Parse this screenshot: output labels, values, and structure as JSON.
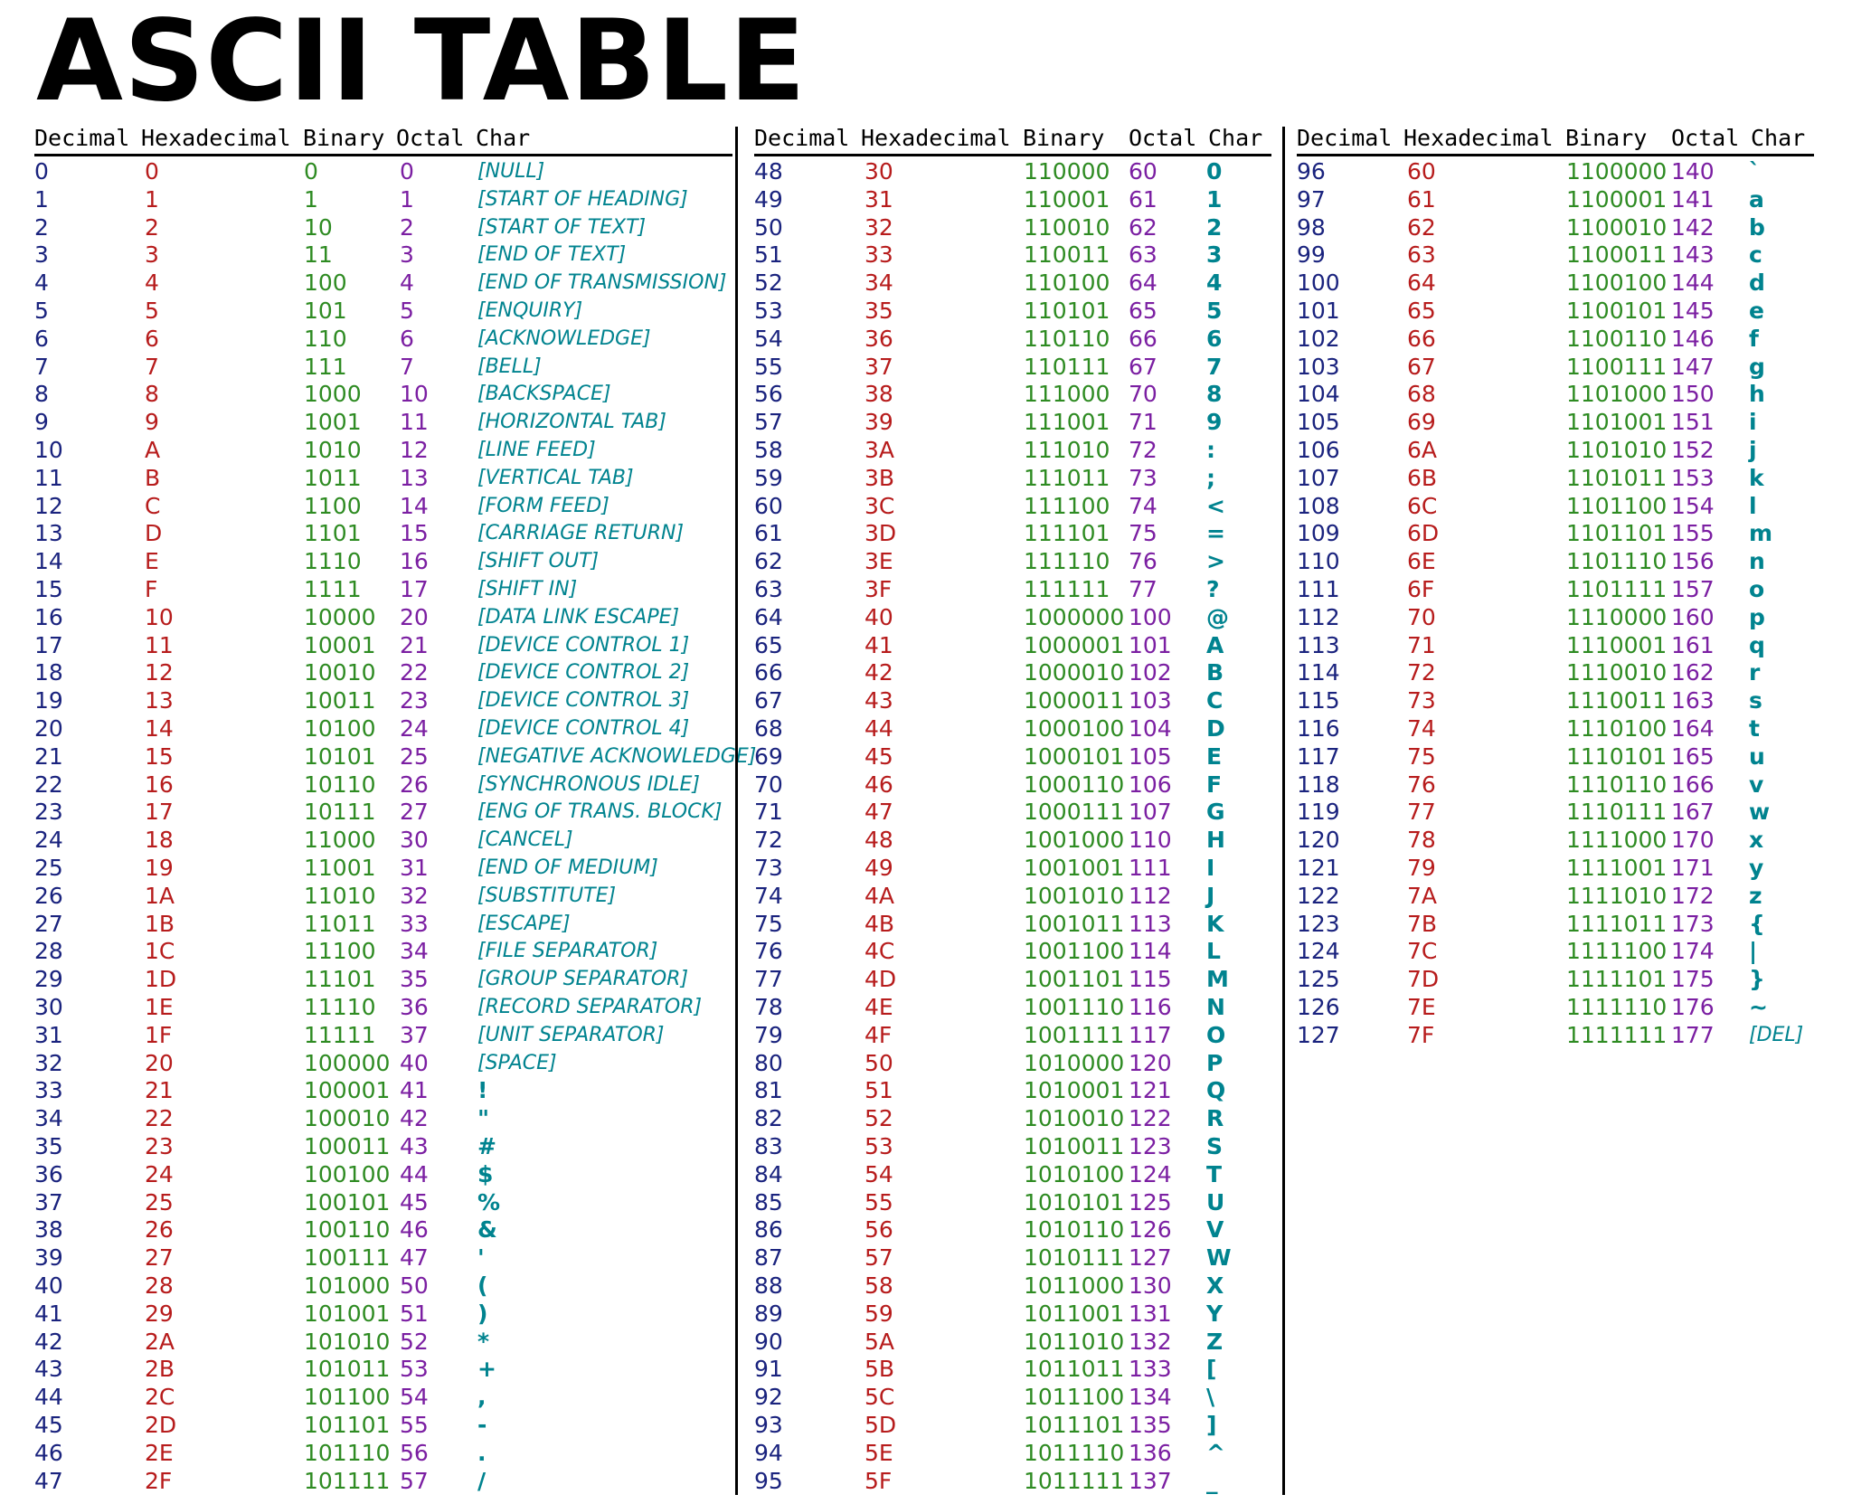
{
  "title": "ASCII TABLE",
  "headers": [
    "Decimal",
    "Hexadecimal",
    "Binary",
    "Octal",
    "Char"
  ],
  "colors": {
    "decimal": "#1a237e",
    "hex": "#b71c1c",
    "binary": "#2e8b22",
    "octal": "#7b1fa2",
    "char": "#00838f"
  },
  "sections": [
    {
      "rows": [
        [
          "0",
          "0",
          "0",
          "0",
          "[NULL]"
        ],
        [
          "1",
          "1",
          "1",
          "1",
          "[START OF HEADING]"
        ],
        [
          "2",
          "2",
          "10",
          "2",
          "[START OF TEXT]"
        ],
        [
          "3",
          "3",
          "11",
          "3",
          "[END OF TEXT]"
        ],
        [
          "4",
          "4",
          "100",
          "4",
          "[END OF TRANSMISSION]"
        ],
        [
          "5",
          "5",
          "101",
          "5",
          "[ENQUIRY]"
        ],
        [
          "6",
          "6",
          "110",
          "6",
          "[ACKNOWLEDGE]"
        ],
        [
          "7",
          "7",
          "111",
          "7",
          "[BELL]"
        ],
        [
          "8",
          "8",
          "1000",
          "10",
          "[BACKSPACE]"
        ],
        [
          "9",
          "9",
          "1001",
          "11",
          "[HORIZONTAL TAB]"
        ],
        [
          "10",
          "A",
          "1010",
          "12",
          "[LINE FEED]"
        ],
        [
          "11",
          "B",
          "1011",
          "13",
          "[VERTICAL TAB]"
        ],
        [
          "12",
          "C",
          "1100",
          "14",
          "[FORM FEED]"
        ],
        [
          "13",
          "D",
          "1101",
          "15",
          "[CARRIAGE RETURN]"
        ],
        [
          "14",
          "E",
          "1110",
          "16",
          "[SHIFT OUT]"
        ],
        [
          "15",
          "F",
          "1111",
          "17",
          "[SHIFT IN]"
        ],
        [
          "16",
          "10",
          "10000",
          "20",
          "[DATA LINK ESCAPE]"
        ],
        [
          "17",
          "11",
          "10001",
          "21",
          "[DEVICE CONTROL 1]"
        ],
        [
          "18",
          "12",
          "10010",
          "22",
          "[DEVICE CONTROL 2]"
        ],
        [
          "19",
          "13",
          "10011",
          "23",
          "[DEVICE CONTROL 3]"
        ],
        [
          "20",
          "14",
          "10100",
          "24",
          "[DEVICE CONTROL 4]"
        ],
        [
          "21",
          "15",
          "10101",
          "25",
          "[NEGATIVE ACKNOWLEDGE]"
        ],
        [
          "22",
          "16",
          "10110",
          "26",
          "[SYNCHRONOUS IDLE]"
        ],
        [
          "23",
          "17",
          "10111",
          "27",
          "[ENG OF TRANS. BLOCK]"
        ],
        [
          "24",
          "18",
          "11000",
          "30",
          "[CANCEL]"
        ],
        [
          "25",
          "19",
          "11001",
          "31",
          "[END OF MEDIUM]"
        ],
        [
          "26",
          "1A",
          "11010",
          "32",
          "[SUBSTITUTE]"
        ],
        [
          "27",
          "1B",
          "11011",
          "33",
          "[ESCAPE]"
        ],
        [
          "28",
          "1C",
          "11100",
          "34",
          "[FILE SEPARATOR]"
        ],
        [
          "29",
          "1D",
          "11101",
          "35",
          "[GROUP SEPARATOR]"
        ],
        [
          "30",
          "1E",
          "11110",
          "36",
          "[RECORD SEPARATOR]"
        ],
        [
          "31",
          "1F",
          "11111",
          "37",
          "[UNIT SEPARATOR]"
        ],
        [
          "32",
          "20",
          "100000",
          "40",
          "[SPACE]"
        ],
        [
          "33",
          "21",
          "100001",
          "41",
          "!"
        ],
        [
          "34",
          "22",
          "100010",
          "42",
          "\""
        ],
        [
          "35",
          "23",
          "100011",
          "43",
          "#"
        ],
        [
          "36",
          "24",
          "100100",
          "44",
          "$"
        ],
        [
          "37",
          "25",
          "100101",
          "45",
          "%"
        ],
        [
          "38",
          "26",
          "100110",
          "46",
          "&"
        ],
        [
          "39",
          "27",
          "100111",
          "47",
          "'"
        ],
        [
          "40",
          "28",
          "101000",
          "50",
          "("
        ],
        [
          "41",
          "29",
          "101001",
          "51",
          ")"
        ],
        [
          "42",
          "2A",
          "101010",
          "52",
          "*"
        ],
        [
          "43",
          "2B",
          "101011",
          "53",
          "+"
        ],
        [
          "44",
          "2C",
          "101100",
          "54",
          ","
        ],
        [
          "45",
          "2D",
          "101101",
          "55",
          "-"
        ],
        [
          "46",
          "2E",
          "101110",
          "56",
          "."
        ],
        [
          "47",
          "2F",
          "101111",
          "57",
          "/"
        ]
      ]
    },
    {
      "rows": [
        [
          "48",
          "30",
          "110000",
          "60",
          "0"
        ],
        [
          "49",
          "31",
          "110001",
          "61",
          "1"
        ],
        [
          "50",
          "32",
          "110010",
          "62",
          "2"
        ],
        [
          "51",
          "33",
          "110011",
          "63",
          "3"
        ],
        [
          "52",
          "34",
          "110100",
          "64",
          "4"
        ],
        [
          "53",
          "35",
          "110101",
          "65",
          "5"
        ],
        [
          "54",
          "36",
          "110110",
          "66",
          "6"
        ],
        [
          "55",
          "37",
          "110111",
          "67",
          "7"
        ],
        [
          "56",
          "38",
          "111000",
          "70",
          "8"
        ],
        [
          "57",
          "39",
          "111001",
          "71",
          "9"
        ],
        [
          "58",
          "3A",
          "111010",
          "72",
          ":"
        ],
        [
          "59",
          "3B",
          "111011",
          "73",
          ";"
        ],
        [
          "60",
          "3C",
          "111100",
          "74",
          "<"
        ],
        [
          "61",
          "3D",
          "111101",
          "75",
          "="
        ],
        [
          "62",
          "3E",
          "111110",
          "76",
          ">"
        ],
        [
          "63",
          "3F",
          "111111",
          "77",
          "?"
        ],
        [
          "64",
          "40",
          "1000000",
          "100",
          "@"
        ],
        [
          "65",
          "41",
          "1000001",
          "101",
          "A"
        ],
        [
          "66",
          "42",
          "1000010",
          "102",
          "B"
        ],
        [
          "67",
          "43",
          "1000011",
          "103",
          "C"
        ],
        [
          "68",
          "44",
          "1000100",
          "104",
          "D"
        ],
        [
          "69",
          "45",
          "1000101",
          "105",
          "E"
        ],
        [
          "70",
          "46",
          "1000110",
          "106",
          "F"
        ],
        [
          "71",
          "47",
          "1000111",
          "107",
          "G"
        ],
        [
          "72",
          "48",
          "1001000",
          "110",
          "H"
        ],
        [
          "73",
          "49",
          "1001001",
          "111",
          "I"
        ],
        [
          "74",
          "4A",
          "1001010",
          "112",
          "J"
        ],
        [
          "75",
          "4B",
          "1001011",
          "113",
          "K"
        ],
        [
          "76",
          "4C",
          "1001100",
          "114",
          "L"
        ],
        [
          "77",
          "4D",
          "1001101",
          "115",
          "M"
        ],
        [
          "78",
          "4E",
          "1001110",
          "116",
          "N"
        ],
        [
          "79",
          "4F",
          "1001111",
          "117",
          "O"
        ],
        [
          "80",
          "50",
          "1010000",
          "120",
          "P"
        ],
        [
          "81",
          "51",
          "1010001",
          "121",
          "Q"
        ],
        [
          "82",
          "52",
          "1010010",
          "122",
          "R"
        ],
        [
          "83",
          "53",
          "1010011",
          "123",
          "S"
        ],
        [
          "84",
          "54",
          "1010100",
          "124",
          "T"
        ],
        [
          "85",
          "55",
          "1010101",
          "125",
          "U"
        ],
        [
          "86",
          "56",
          "1010110",
          "126",
          "V"
        ],
        [
          "87",
          "57",
          "1010111",
          "127",
          "W"
        ],
        [
          "88",
          "58",
          "1011000",
          "130",
          "X"
        ],
        [
          "89",
          "59",
          "1011001",
          "131",
          "Y"
        ],
        [
          "90",
          "5A",
          "1011010",
          "132",
          "Z"
        ],
        [
          "91",
          "5B",
          "1011011",
          "133",
          "["
        ],
        [
          "92",
          "5C",
          "1011100",
          "134",
          "\\"
        ],
        [
          "93",
          "5D",
          "1011101",
          "135",
          "]"
        ],
        [
          "94",
          "5E",
          "1011110",
          "136",
          "^"
        ],
        [
          "95",
          "5F",
          "1011111",
          "137",
          "_"
        ]
      ]
    },
    {
      "rows": [
        [
          "96",
          "60",
          "1100000",
          "140",
          "`"
        ],
        [
          "97",
          "61",
          "1100001",
          "141",
          "a"
        ],
        [
          "98",
          "62",
          "1100010",
          "142",
          "b"
        ],
        [
          "99",
          "63",
          "1100011",
          "143",
          "c"
        ],
        [
          "100",
          "64",
          "1100100",
          "144",
          "d"
        ],
        [
          "101",
          "65",
          "1100101",
          "145",
          "e"
        ],
        [
          "102",
          "66",
          "1100110",
          "146",
          "f"
        ],
        [
          "103",
          "67",
          "1100111",
          "147",
          "g"
        ],
        [
          "104",
          "68",
          "1101000",
          "150",
          "h"
        ],
        [
          "105",
          "69",
          "1101001",
          "151",
          "i"
        ],
        [
          "106",
          "6A",
          "1101010",
          "152",
          "j"
        ],
        [
          "107",
          "6B",
          "1101011",
          "153",
          "k"
        ],
        [
          "108",
          "6C",
          "1101100",
          "154",
          "l"
        ],
        [
          "109",
          "6D",
          "1101101",
          "155",
          "m"
        ],
        [
          "110",
          "6E",
          "1101110",
          "156",
          "n"
        ],
        [
          "111",
          "6F",
          "1101111",
          "157",
          "o"
        ],
        [
          "112",
          "70",
          "1110000",
          "160",
          "p"
        ],
        [
          "113",
          "71",
          "1110001",
          "161",
          "q"
        ],
        [
          "114",
          "72",
          "1110010",
          "162",
          "r"
        ],
        [
          "115",
          "73",
          "1110011",
          "163",
          "s"
        ],
        [
          "116",
          "74",
          "1110100",
          "164",
          "t"
        ],
        [
          "117",
          "75",
          "1110101",
          "165",
          "u"
        ],
        [
          "118",
          "76",
          "1110110",
          "166",
          "v"
        ],
        [
          "119",
          "77",
          "1110111",
          "167",
          "w"
        ],
        [
          "120",
          "78",
          "1111000",
          "170",
          "x"
        ],
        [
          "121",
          "79",
          "1111001",
          "171",
          "y"
        ],
        [
          "122",
          "7A",
          "1111010",
          "172",
          "z"
        ],
        [
          "123",
          "7B",
          "1111011",
          "173",
          "{"
        ],
        [
          "124",
          "7C",
          "1111100",
          "174",
          "|"
        ],
        [
          "125",
          "7D",
          "1111101",
          "175",
          "}"
        ],
        [
          "126",
          "7E",
          "1111110",
          "176",
          "~"
        ],
        [
          "127",
          "7F",
          "1111111",
          "177",
          "[DEL]"
        ]
      ]
    }
  ]
}
